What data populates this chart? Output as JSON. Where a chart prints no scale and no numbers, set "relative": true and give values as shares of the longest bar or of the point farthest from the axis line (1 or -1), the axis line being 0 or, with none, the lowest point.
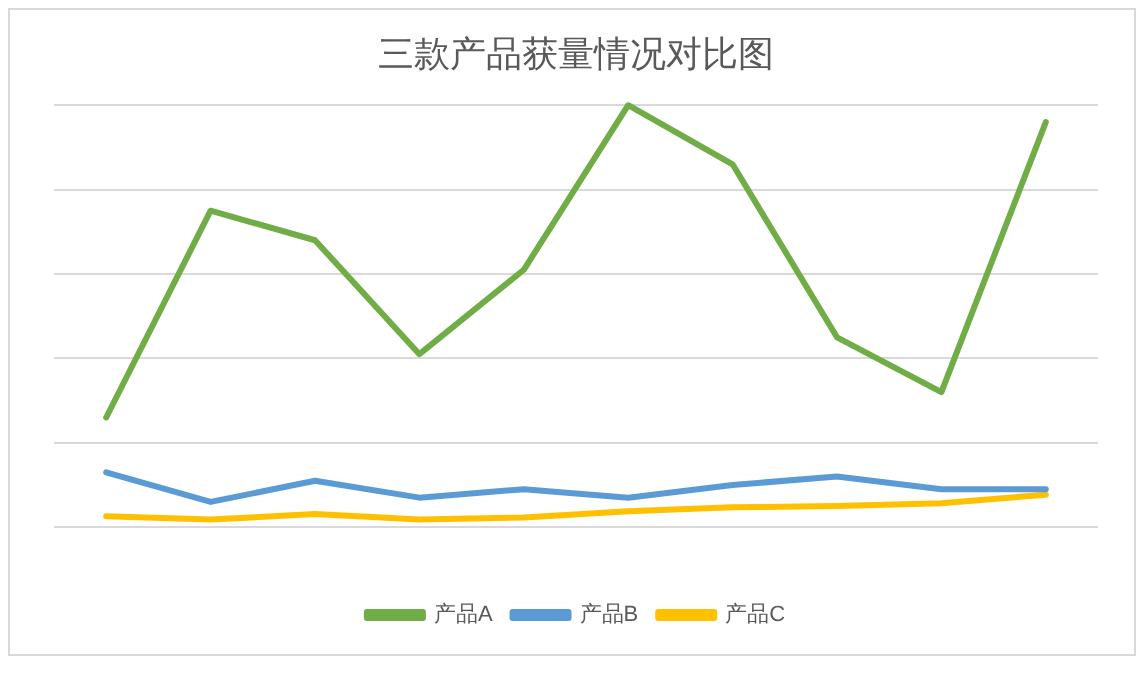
{
  "chart_data": {
    "type": "line",
    "title": "三款产品获量情况对比图",
    "relative": true,
    "grid": "y",
    "legend": "bottom",
    "marker": "none",
    "line_style": "solid",
    "categories": [
      null,
      null,
      null,
      null,
      null,
      null,
      null,
      null,
      null,
      null
    ],
    "series": [
      {
        "name": "产品A",
        "color": "#70ad47",
        "values": [
          0.26,
          0.75,
          0.68,
          0.41,
          0.61,
          1,
          0.86,
          0.45,
          0.32,
          0.96
        ]
      },
      {
        "name": "产品B",
        "color": "#5b9bd5",
        "values": [
          0.13,
          0.06,
          0.11,
          0.07,
          0.09,
          0.07,
          0.1,
          0.12,
          0.09,
          0.09
        ]
      },
      {
        "name": "产品C",
        "color": "#ffc000",
        "values": [
          0.026,
          0.018,
          0.031,
          0.018,
          0.023,
          0.038,
          0.047,
          0.05,
          0.057,
          0.077
        ]
      }
    ]
  }
}
